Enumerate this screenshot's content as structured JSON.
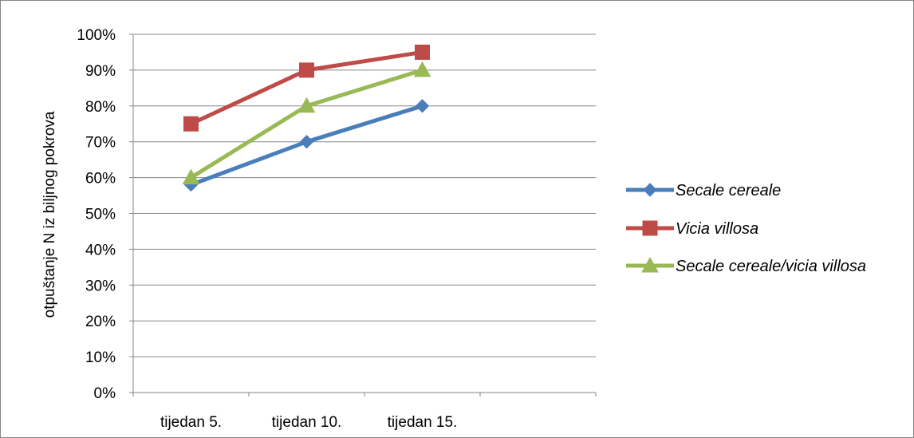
{
  "chart_data": {
    "type": "line",
    "title": "",
    "xlabel": "",
    "ylabel": "otpuštanje N iz biljnog pokrova",
    "categories": [
      "tijedan 5.",
      "tijedan 10.",
      "tijedan 15."
    ],
    "ylim": [
      0,
      100
    ],
    "y_ticks": [
      0,
      10,
      20,
      30,
      40,
      50,
      60,
      70,
      80,
      90,
      100
    ],
    "y_tick_labels": [
      "0%",
      "10%",
      "20%",
      "30%",
      "40%",
      "50%",
      "60%",
      "70%",
      "80%",
      "90%",
      "100%"
    ],
    "grid": true,
    "legend_position": "right",
    "series": [
      {
        "name": "Secale cereale",
        "values": [
          58,
          70,
          80
        ],
        "color": "#4A7EBB",
        "marker": "diamond"
      },
      {
        "name": "Vicia villosa",
        "values": [
          75,
          90,
          95
        ],
        "color": "#BE4B48",
        "marker": "square"
      },
      {
        "name": "Secale cereale/vicia villosa",
        "values": [
          60,
          80,
          90
        ],
        "color": "#98B954",
        "marker": "triangle"
      }
    ]
  }
}
